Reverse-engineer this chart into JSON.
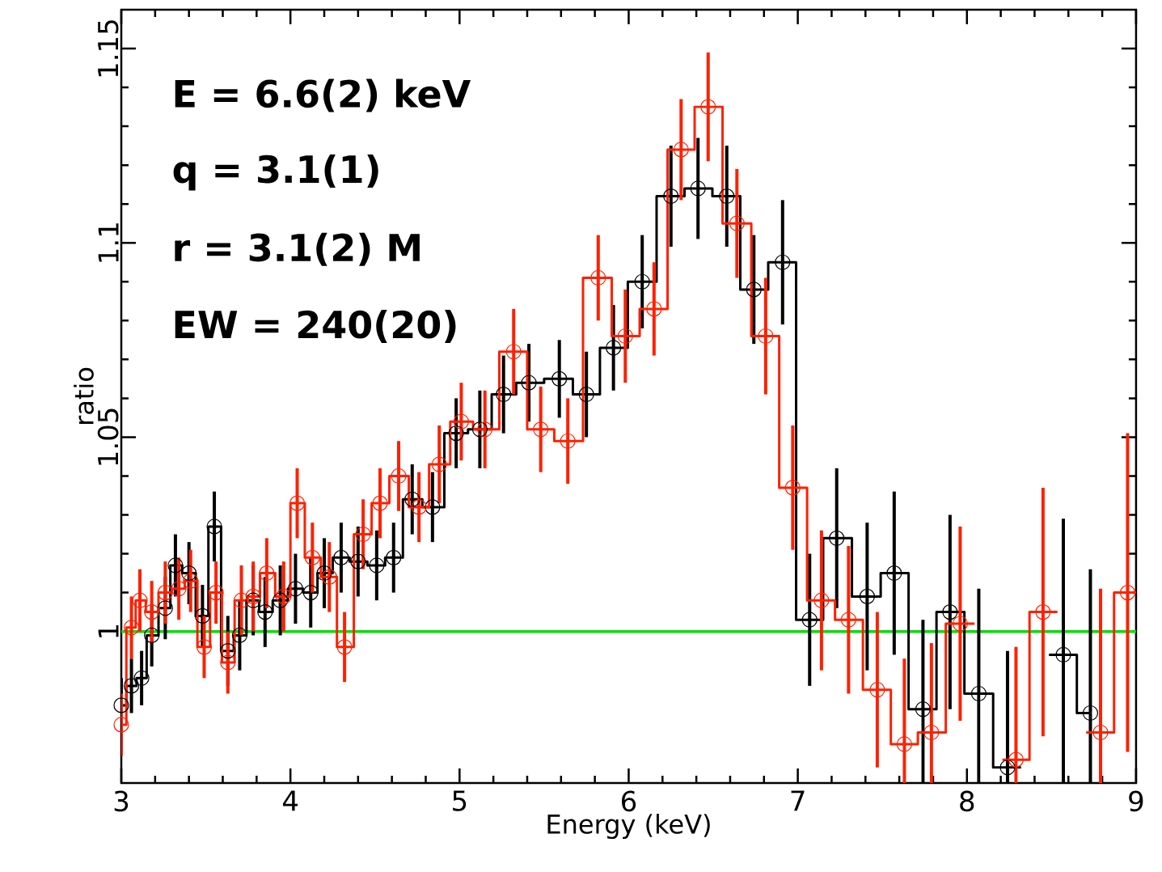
{
  "chart_data": {
    "type": "step",
    "xlabel": "Energy (keV)",
    "ylabel": "ratio",
    "annotations": [
      "E = 6.6(2) keV",
      "q = 3.1(1)",
      "r = 3.1(2) M",
      "EW = 240(20)"
    ],
    "xlim": [
      3,
      9
    ],
    "ylim": [
      0.961,
      1.16
    ],
    "xticks": [
      3,
      4,
      5,
      6,
      7,
      8,
      9
    ],
    "yticks": [
      1,
      1.05,
      1.1,
      1.15
    ],
    "marker": "circle",
    "grid": false,
    "ref_lines": [
      {
        "axis": "y",
        "value": 1,
        "color": "#00e000"
      }
    ],
    "series": [
      {
        "color": "#000000",
        "x": [
          3.0,
          3.06,
          3.12,
          3.18,
          3.26,
          3.32,
          3.4,
          3.48,
          3.55,
          3.63,
          3.7,
          3.78,
          3.85,
          3.94,
          4.03,
          4.12,
          4.2,
          4.3,
          4.4,
          4.51,
          4.61,
          4.72,
          4.84,
          4.98,
          5.12,
          5.26,
          5.41,
          5.59,
          5.75,
          5.91,
          6.08,
          6.25,
          6.41,
          6.58,
          6.74,
          6.91,
          7.07,
          7.23,
          7.41,
          7.57,
          7.74,
          7.9,
          8.07,
          8.24,
          8.4,
          8.57,
          8.73
        ],
        "values": [
          0.981,
          0.986,
          0.988,
          0.999,
          1.006,
          1.017,
          1.015,
          1.004,
          1.027,
          0.995,
          0.999,
          1.008,
          1.005,
          1.008,
          1.011,
          1.01,
          1.015,
          1.019,
          1.018,
          1.017,
          1.019,
          1.034,
          1.032,
          1.051,
          1.052,
          1.061,
          1.064,
          1.065,
          1.061,
          1.073,
          1.09,
          1.112,
          1.114,
          1.112,
          1.088,
          1.095,
          1.003,
          1.024,
          1.009,
          1.015,
          0.98,
          1.005,
          0.984,
          0.965,
          null,
          0.994,
          0.979
        ],
        "errors": [
          0.007,
          0.007,
          0.007,
          0.008,
          0.008,
          0.008,
          0.008,
          0.008,
          0.009,
          0.009,
          0.009,
          0.009,
          0.009,
          0.009,
          0.009,
          0.009,
          0.009,
          0.009,
          0.009,
          0.009,
          0.009,
          0.009,
          0.009,
          0.009,
          0.01,
          0.01,
          0.01,
          0.01,
          0.011,
          0.011,
          0.012,
          0.013,
          0.013,
          0.013,
          0.014,
          0.016,
          0.017,
          0.018,
          0.019,
          0.021,
          [
            0.961,
            1.003
          ],
          0.025,
          [
            0.961,
            1.011
          ],
          [
            0.961,
            0.995
          ],
          null,
          [
            0.961,
            1.029
          ],
          [
            0.961,
            1.016
          ]
        ]
      },
      {
        "color": "#ff2000",
        "x": [
          3.0,
          3.06,
          3.11,
          3.18,
          3.26,
          3.34,
          3.41,
          3.49,
          3.56,
          3.63,
          3.71,
          3.78,
          3.86,
          3.96,
          4.04,
          4.13,
          4.23,
          4.32,
          4.43,
          4.53,
          4.64,
          4.76,
          4.88,
          5.01,
          5.15,
          5.32,
          5.48,
          5.64,
          5.82,
          5.98,
          6.15,
          6.31,
          6.47,
          6.64,
          6.81,
          6.97,
          7.14,
          7.3,
          7.47,
          7.63,
          7.79,
          7.96,
          8.13,
          8.29,
          8.45,
          8.62,
          8.79,
          8.95
        ],
        "values": [
          0.976,
          1.001,
          1.008,
          1.005,
          1.01,
          1.011,
          1.013,
          0.996,
          1.01,
          0.992,
          1.008,
          1.009,
          1.015,
          1.009,
          1.033,
          1.019,
          1.014,
          0.996,
          1.025,
          1.033,
          1.04,
          1.032,
          1.043,
          1.054,
          1.052,
          1.072,
          1.052,
          1.049,
          1.091,
          1.076,
          1.083,
          1.124,
          1.135,
          1.105,
          1.076,
          1.037,
          1.008,
          1.003,
          0.985,
          0.971,
          0.974,
          1.002,
          null,
          0.967,
          1.005,
          null,
          0.974,
          1.01
        ],
        "errors": [
          0.008,
          0.008,
          0.008,
          0.008,
          0.008,
          0.008,
          0.008,
          0.008,
          0.008,
          0.008,
          0.009,
          0.009,
          0.009,
          0.009,
          0.009,
          0.009,
          0.009,
          0.009,
          0.009,
          0.009,
          0.009,
          0.009,
          0.01,
          0.01,
          0.01,
          0.011,
          0.011,
          0.011,
          0.011,
          0.012,
          0.012,
          0.013,
          0.014,
          0.014,
          0.015,
          0.016,
          0.018,
          0.019,
          0.02,
          [
            0.961,
            0.993
          ],
          [
            0.961,
            0.997
          ],
          0.025,
          null,
          [
            0.961,
            0.996
          ],
          0.032,
          null,
          [
            0.961,
            1.011
          ],
          0.041
        ]
      }
    ]
  }
}
